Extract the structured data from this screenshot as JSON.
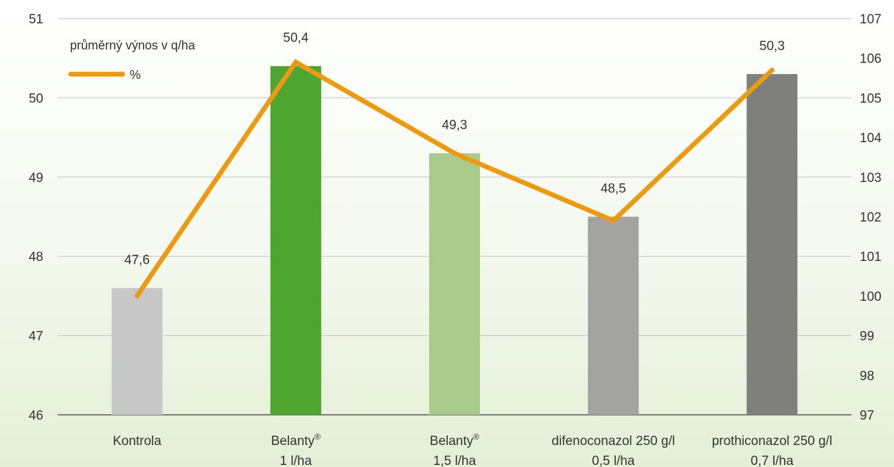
{
  "chart_data": {
    "type": "bar",
    "categories": [
      {
        "lines": [
          "Kontrola"
        ],
        "sup": ""
      },
      {
        "lines": [
          "Belanty",
          "1 l/ha"
        ],
        "sup": "®"
      },
      {
        "lines": [
          "Belanty",
          "1,5 l/ha"
        ],
        "sup": "®"
      },
      {
        "lines": [
          "difenoconazol 250 g/l",
          "0,5 l/ha"
        ],
        "sup": ""
      },
      {
        "lines": [
          "prothiconazol 250 g/l",
          "0,7 l/ha"
        ],
        "sup": ""
      }
    ],
    "series": [
      {
        "name": "průměrný výnos v q/ha",
        "type": "bar",
        "axis": "left",
        "values": [
          47.6,
          50.4,
          49.3,
          48.5,
          50.3
        ],
        "labels": [
          "47,6",
          "50,4",
          "49,3",
          "48,5",
          "50,3"
        ],
        "colors": [
          "#c8c8c8",
          "#4ea52f",
          "#a9cb8b",
          "#a3a3a1",
          "#7f807c"
        ]
      },
      {
        "name": "%",
        "type": "line",
        "axis": "right",
        "values": [
          100,
          105.9,
          103.6,
          101.9,
          105.7
        ],
        "color": "#eb9a14"
      }
    ],
    "y_left": {
      "min": 46,
      "max": 51,
      "ticks": [
        "46",
        "47",
        "48",
        "49",
        "50",
        "51"
      ]
    },
    "y_right": {
      "min": 97,
      "max": 107,
      "ticks": [
        "97",
        "98",
        "99",
        "100",
        "101",
        "102",
        "103",
        "104",
        "105",
        "106",
        "107"
      ]
    },
    "grid": true,
    "legend_position": "top-left",
    "colors": {
      "grid": "#c4c4c4",
      "axis": "#555555",
      "text": "#333333"
    }
  }
}
